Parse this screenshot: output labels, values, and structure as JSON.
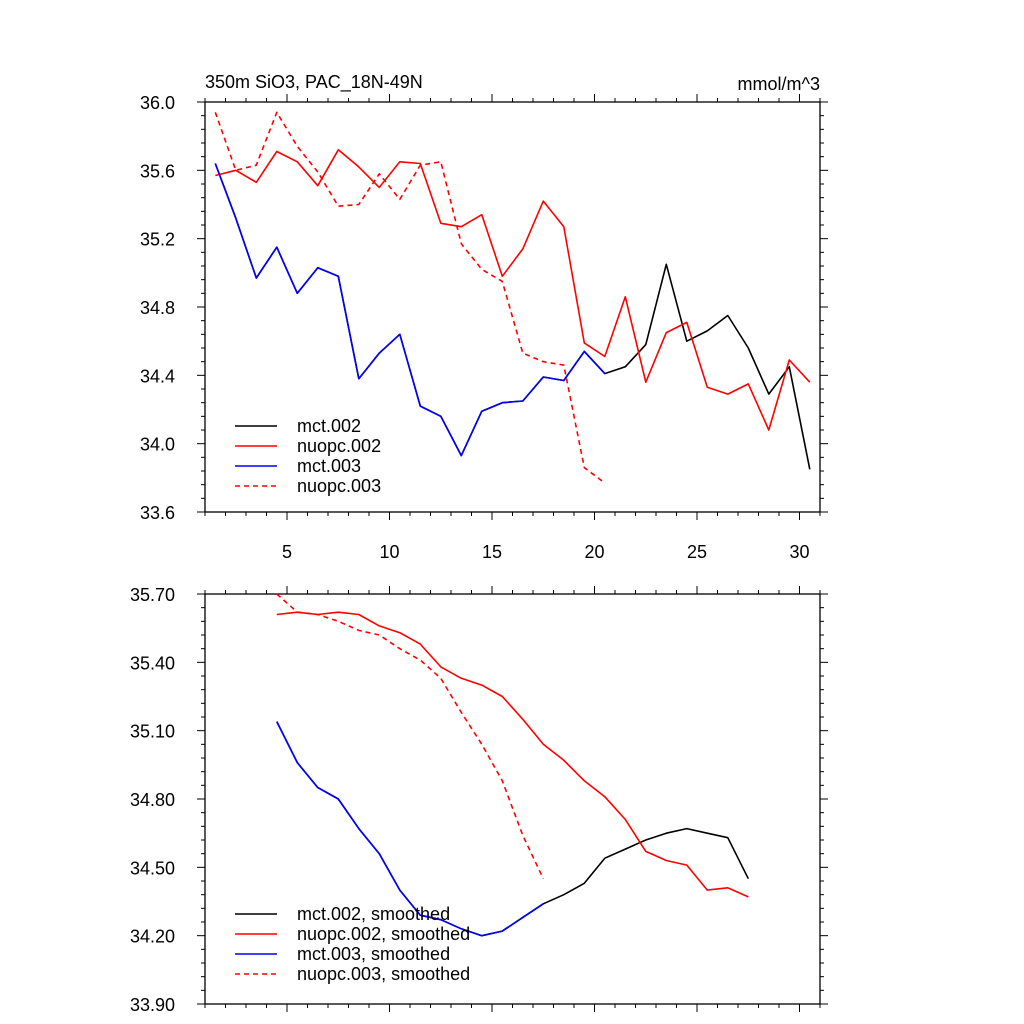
{
  "chart_data": [
    {
      "type": "line",
      "title": "350m SiO3, PAC_18N-49N",
      "units": "mmol/m^3",
      "xlim": [
        1,
        31
      ],
      "ylim": [
        33.6,
        36.0
      ],
      "xticks": [
        5,
        10,
        15,
        20,
        25,
        30
      ],
      "xtick_labels": [
        "5",
        "10",
        "15",
        "20",
        "25",
        "30"
      ],
      "yticks": [
        33.6,
        34.0,
        34.4,
        34.8,
        35.2,
        35.6,
        36.0
      ],
      "ytick_labels": [
        "33.6",
        "34.0",
        "34.4",
        "34.8",
        "35.2",
        "35.6",
        "36.0"
      ],
      "legend_position": "bottom-left",
      "series": [
        {
          "name": "mct.002",
          "color": "#000000",
          "dashed": false,
          "x": [
            1.5,
            2.5,
            3.5,
            4.5,
            5.5,
            6.5,
            7.5,
            8.5,
            9.5,
            10.5,
            11.5,
            12.5,
            13.5,
            14.5,
            15.5,
            16.5,
            17.5,
            18.5,
            19.5,
            20.5,
            21.5,
            22.5,
            23.5,
            24.5,
            25.5,
            26.5,
            27.5,
            28.5,
            29.5,
            30.5
          ],
          "values": [
            35.64,
            35.32,
            34.97,
            35.15,
            34.88,
            35.03,
            34.98,
            34.38,
            34.53,
            34.64,
            34.22,
            34.16,
            33.93,
            34.19,
            34.24,
            34.25,
            34.39,
            34.37,
            34.54,
            34.41,
            34.45,
            34.58,
            35.05,
            34.6,
            34.66,
            34.75,
            34.56,
            34.29,
            34.45,
            33.85
          ]
        },
        {
          "name": "nuopc.002",
          "color": "#ff0000",
          "dashed": false,
          "x": [
            1.5,
            2.5,
            3.5,
            4.5,
            5.5,
            6.5,
            7.5,
            8.5,
            9.5,
            10.5,
            11.5,
            12.5,
            13.5,
            14.5,
            15.5,
            16.5,
            17.5,
            18.5,
            19.5,
            20.5,
            21.5,
            22.5,
            23.5,
            24.5,
            25.5,
            26.5,
            27.5,
            28.5,
            29.5,
            30.5
          ],
          "values": [
            35.57,
            35.6,
            35.53,
            35.71,
            35.65,
            35.51,
            35.72,
            35.62,
            35.5,
            35.65,
            35.64,
            35.29,
            35.27,
            35.34,
            34.98,
            35.14,
            35.42,
            35.27,
            34.59,
            34.51,
            34.86,
            34.36,
            34.65,
            34.71,
            34.33,
            34.29,
            34.35,
            34.08,
            34.49,
            34.36
          ]
        },
        {
          "name": "mct.003",
          "color": "#0000ff",
          "dashed": false,
          "x": [
            1.5,
            2.5,
            3.5,
            4.5,
            5.5,
            6.5,
            7.5,
            8.5,
            9.5,
            10.5,
            11.5,
            12.5,
            13.5,
            14.5,
            15.5,
            16.5,
            17.5,
            18.5,
            19.5,
            20.5
          ],
          "values": [
            35.64,
            35.32,
            34.97,
            35.15,
            34.88,
            35.03,
            34.98,
            34.38,
            34.53,
            34.64,
            34.22,
            34.16,
            33.93,
            34.19,
            34.24,
            34.25,
            34.39,
            34.37,
            34.54,
            34.41
          ]
        },
        {
          "name": "nuopc.003",
          "color": "#ff0000",
          "dashed": true,
          "x": [
            1.5,
            2.5,
            3.5,
            4.5,
            5.5,
            6.5,
            7.5,
            8.5,
            9.5,
            10.5,
            11.5,
            12.5,
            13.5,
            14.5,
            15.5,
            16.5,
            17.5,
            18.5,
            19.5,
            20.5
          ],
          "values": [
            35.94,
            35.6,
            35.63,
            35.94,
            35.74,
            35.59,
            35.39,
            35.4,
            35.58,
            35.43,
            35.63,
            35.65,
            35.17,
            35.02,
            34.95,
            34.53,
            34.48,
            34.46,
            33.86,
            33.77
          ]
        }
      ]
    },
    {
      "type": "line",
      "title": "",
      "xlim": [
        1,
        31
      ],
      "ylim": [
        33.9,
        35.7
      ],
      "xticks": [
        5,
        10,
        15,
        20,
        25,
        30
      ],
      "xtick_labels": [],
      "yticks": [
        33.9,
        34.2,
        34.5,
        34.8,
        35.1,
        35.4,
        35.7
      ],
      "ytick_labels": [
        "33.90",
        "34.20",
        "34.50",
        "34.80",
        "35.10",
        "35.40",
        "35.70"
      ],
      "legend_position": "bottom-left",
      "series": [
        {
          "name": "mct.002, smoothed",
          "color": "#000000",
          "dashed": false,
          "x": [
            4.5,
            5.5,
            6.5,
            7.5,
            8.5,
            9.5,
            10.5,
            11.5,
            12.5,
            13.5,
            14.5,
            15.5,
            16.5,
            17.5,
            18.5,
            19.5,
            20.5,
            21.5,
            22.5,
            23.5,
            24.5,
            25.5,
            26.5,
            27.5
          ],
          "values": [
            35.14,
            34.96,
            34.85,
            34.8,
            34.67,
            34.56,
            34.4,
            34.29,
            34.27,
            34.23,
            34.2,
            34.22,
            34.28,
            34.34,
            34.38,
            34.43,
            34.54,
            34.58,
            34.62,
            34.65,
            34.67,
            34.65,
            34.63,
            34.45
          ]
        },
        {
          "name": "nuopc.002, smoothed",
          "color": "#ff0000",
          "dashed": false,
          "x": [
            4.5,
            5.5,
            6.5,
            7.5,
            8.5,
            9.5,
            10.5,
            11.5,
            12.5,
            13.5,
            14.5,
            15.5,
            16.5,
            17.5,
            18.5,
            19.5,
            20.5,
            21.5,
            22.5,
            23.5,
            24.5,
            25.5,
            26.5,
            27.5
          ],
          "values": [
            35.61,
            35.62,
            35.61,
            35.62,
            35.61,
            35.56,
            35.53,
            35.48,
            35.38,
            35.33,
            35.3,
            35.25,
            35.15,
            35.04,
            34.97,
            34.88,
            34.81,
            34.71,
            34.57,
            34.53,
            34.51,
            34.4,
            34.41,
            34.37
          ]
        },
        {
          "name": "mct.003, smoothed",
          "color": "#0000ff",
          "dashed": false,
          "x": [
            4.5,
            5.5,
            6.5,
            7.5,
            8.5,
            9.5,
            10.5,
            11.5,
            12.5,
            13.5,
            14.5,
            15.5,
            16.5,
            17.5
          ],
          "values": [
            35.14,
            34.96,
            34.85,
            34.8,
            34.67,
            34.56,
            34.4,
            34.29,
            34.27,
            34.23,
            34.2,
            34.22,
            34.28,
            34.34
          ]
        },
        {
          "name": "nuopc.003, smoothed",
          "color": "#ff0000",
          "dashed": true,
          "x": [
            4.5,
            5.5,
            6.5,
            7.5,
            8.5,
            9.5,
            10.5,
            11.5,
            12.5,
            13.5,
            14.5,
            15.5,
            16.5,
            17.5
          ],
          "values": [
            35.7,
            35.62,
            35.61,
            35.58,
            35.54,
            35.52,
            35.46,
            35.41,
            35.33,
            35.18,
            35.04,
            34.88,
            34.64,
            34.45
          ]
        }
      ]
    }
  ]
}
